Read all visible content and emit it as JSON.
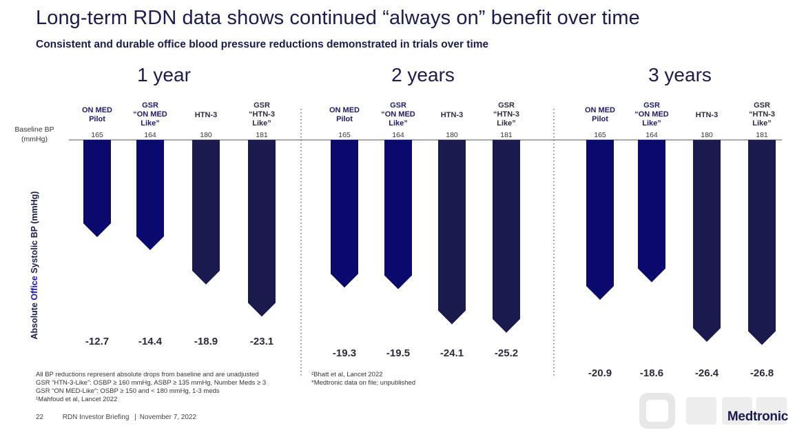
{
  "title": "Long-term RDN data shows continued “always on” benefit over time",
  "subtitle": "Consistent and durable office blood pressure reductions demonstrated in trials over time",
  "colors": {
    "on_med": "#0a0a6e",
    "htn": "#1a1a4e",
    "text": "#1b1b4f",
    "accent_blue": "#1515c8"
  },
  "chart_data": {
    "type": "bar",
    "ylabel_parts": [
      "Absolute ",
      "Office",
      " Systolic  BP (mmHg)"
    ],
    "baseline_label": [
      "Baseline BP",
      "(mmHg)"
    ],
    "categories": [
      [
        "ON MED",
        "Pilot"
      ],
      [
        "GSR",
        "“ON MED",
        "Like”"
      ],
      [
        "HTN-3"
      ],
      [
        "GSR",
        "“HTN-3",
        "Like”"
      ]
    ],
    "baselines": [
      "165",
      "164",
      "180",
      "181"
    ],
    "panels": [
      {
        "label": "1 year",
        "values": [
          -12.7,
          -14.4,
          -18.9,
          -23.1
        ]
      },
      {
        "label": "2 years",
        "values": [
          -19.3,
          -19.5,
          -24.1,
          -25.2
        ]
      },
      {
        "label": "3 years",
        "values": [
          -20.9,
          -18.6,
          -26.4,
          -26.8
        ]
      }
    ],
    "ylim": [
      -30,
      0
    ]
  },
  "footnotes": {
    "left": [
      "All BP reductions represent absolute drops from baseline and are unadjusted",
      "GSR “HTN-3-Like”:  OSBP ≥ 160 mmHg,  ASBP ≥ 135 mmHg,  Number Meds ≥  3",
      "GSR “ON MED-Like”: OSBP ≥ 150 and < 180 mmHg,  1-3 meds",
      "¹Mahfoud et al, Lancet 2022"
    ],
    "mid": [
      "²Bhatt et al, Lancet 2022",
      "*Medtronic data on file; unpublished"
    ]
  },
  "footer": {
    "page": "22",
    "event": "RDN Investor Briefing",
    "date": "November  7, 2022"
  },
  "logo": "Medtronic"
}
